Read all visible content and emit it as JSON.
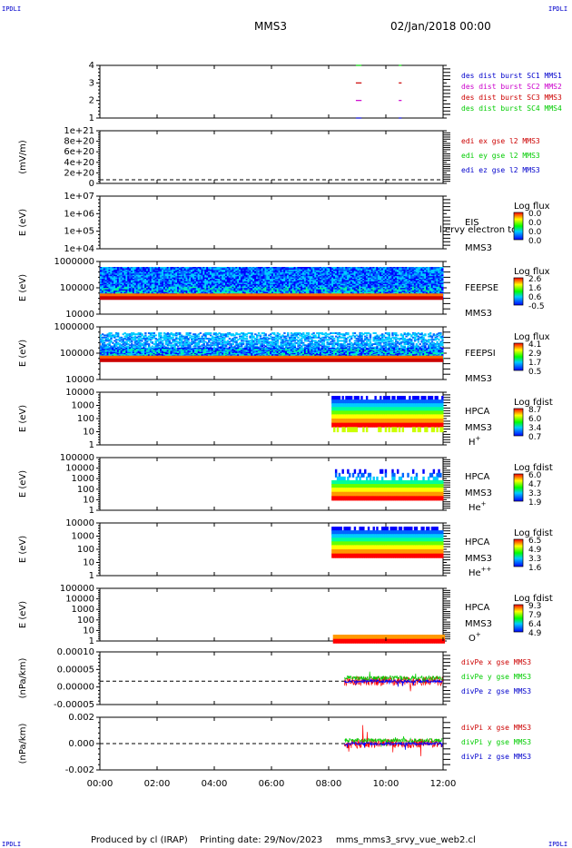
{
  "corner_label": "IPDLI",
  "header": {
    "mission": "MMS3",
    "datetime": "02/Jan/2018 00:00"
  },
  "footer": {
    "produced_by": "Produced by cl (IRAP)",
    "printing_date": "Printing date: 29/Nov/2023",
    "script_name": "mms_mms3_srvy_vue_web2.cl"
  },
  "x_axis": {
    "ticks": [
      "00:00",
      "02:00",
      "04:00",
      "06:00",
      "08:00",
      "10:00",
      "12:00"
    ]
  },
  "colors": {
    "red": "#ff0000",
    "green": "#00cc00",
    "blue": "#0000ff",
    "magenta": "#cc00cc"
  },
  "chart_data": [
    {
      "type": "line",
      "id": "burst",
      "ylabel": "",
      "yticks": [
        "1",
        "2",
        "3",
        "4"
      ],
      "legend": [
        {
          "text": "des dist burst SC1 MMS1",
          "color": "#0000cc"
        },
        {
          "text": "des dist burst SC2 MMS2",
          "color": "#cc00cc"
        },
        {
          "text": "des dist burst SC3 MMS3",
          "color": "#cc0000"
        },
        {
          "text": "des dist burst SC4 MMS4",
          "color": "#00cc00"
        }
      ],
      "series": [
        {
          "name": "des dist burst SC1 MMS1",
          "level": 1,
          "segments": [
            [
              8.95,
              9.15
            ],
            [
              10.45,
              10.55
            ]
          ]
        },
        {
          "name": "des dist burst SC2 MMS2",
          "level": 2,
          "segments": [
            [
              8.95,
              9.15
            ],
            [
              10.45,
              10.55
            ]
          ]
        },
        {
          "name": "des dist burst SC3 MMS3",
          "level": 3,
          "segments": [
            [
              8.95,
              9.15
            ],
            [
              10.45,
              10.55
            ]
          ]
        },
        {
          "name": "des dist burst SC4 MMS4",
          "level": 4,
          "segments": [
            [
              8.95,
              9.15
            ],
            [
              10.45,
              10.55
            ]
          ]
        }
      ]
    },
    {
      "type": "line",
      "id": "edi",
      "ylabel": "(mV/m)",
      "yticks": [
        "0",
        "2e+20",
        "4e+20",
        "6e+20",
        "8e+20",
        "1e+21"
      ],
      "legend": [
        {
          "text": "edi ex gse l2 MMS3",
          "color": "#cc0000"
        },
        {
          "text": "edi ey gse l2 MMS3",
          "color": "#00cc00"
        },
        {
          "text": "edi ez gse l2 MMS3",
          "color": "#0000cc"
        }
      ]
    },
    {
      "type": "heatmap",
      "id": "eis",
      "ylabel": "E (eV)",
      "yticks": [
        "1e+04",
        "1e+05",
        "1e+06",
        "1e+07"
      ],
      "side_labels": [
        "EIS",
        "MMS3"
      ],
      "overflow_label": "l ervy electron to",
      "colorbar": {
        "title": "Log flux",
        "ticks": [
          "0.0",
          "0.0",
          "0.0",
          "0.0"
        ]
      }
    },
    {
      "type": "heatmap",
      "id": "feepse",
      "ylabel": "E (eV)",
      "yticks": [
        "10000",
        "100000",
        "1000000"
      ],
      "side_labels": [
        "FEEPSE",
        "MMS3"
      ],
      "colorbar": {
        "title": "Log flux",
        "ticks": [
          "2.6",
          "1.6",
          "0.6",
          "-0.5"
        ]
      }
    },
    {
      "type": "heatmap",
      "id": "feepsi",
      "ylabel": "E (eV)",
      "yticks": [
        "10000",
        "100000",
        "1000000"
      ],
      "side_labels": [
        "FEEPSI",
        "MMS3"
      ],
      "colorbar": {
        "title": "Log flux",
        "ticks": [
          "4.1",
          "2.9",
          "1.7",
          "0.5"
        ]
      }
    },
    {
      "type": "heatmap",
      "id": "hpca_h",
      "ylabel": "E (eV)",
      "yticks": [
        "1",
        "10",
        "100",
        "1000",
        "10000"
      ],
      "side_labels": [
        "HPCA",
        "MMS3"
      ],
      "species": {
        "base": "H",
        "sup": "+"
      },
      "colorbar": {
        "title": "Log fdist",
        "ticks": [
          "8.7",
          "6.0",
          "3.4",
          "0.7"
        ]
      }
    },
    {
      "type": "heatmap",
      "id": "hpca_he",
      "ylabel": "E (eV)",
      "yticks": [
        "1",
        "10",
        "100",
        "1000",
        "10000",
        "100000"
      ],
      "side_labels": [
        "HPCA",
        "MMS3"
      ],
      "species": {
        "base": "He",
        "sup": "+"
      },
      "colorbar": {
        "title": "Log fdist",
        "ticks": [
          "6.0",
          "4.7",
          "3.3",
          "1.9"
        ]
      }
    },
    {
      "type": "heatmap",
      "id": "hpca_hepp",
      "ylabel": "E (eV)",
      "yticks": [
        "1",
        "10",
        "100",
        "1000",
        "10000"
      ],
      "side_labels": [
        "HPCA",
        "MMS3"
      ],
      "species": {
        "base": "He",
        "sup": "++"
      },
      "colorbar": {
        "title": "Log fdist",
        "ticks": [
          "6.5",
          "4.9",
          "3.3",
          "1.6"
        ]
      }
    },
    {
      "type": "heatmap",
      "id": "hpca_o",
      "ylabel": "E (eV)",
      "yticks": [
        "1",
        "10",
        "100",
        "1000",
        "10000",
        "100000"
      ],
      "side_labels": [
        "HPCA",
        "MMS3"
      ],
      "species": {
        "base": "O",
        "sup": "+"
      },
      "colorbar": {
        "title": "Log fdist",
        "ticks": [
          "9.3",
          "7.9",
          "6.4",
          "4.9"
        ]
      }
    },
    {
      "type": "line",
      "id": "divpe",
      "ylabel": "(nPa/km)",
      "yticks": [
        "-0.00005",
        "0.00000",
        "0.00005",
        "0.00010"
      ],
      "ylim": [
        -8e-05,
        0.0001
      ],
      "legend": [
        {
          "text": "divPe x gse MMS3",
          "color": "#cc0000"
        },
        {
          "text": "divPe y gse MMS3",
          "color": "#00cc00"
        },
        {
          "text": "divPe z gse MMS3",
          "color": "#0000cc"
        }
      ]
    },
    {
      "type": "line",
      "id": "divpi",
      "ylabel": "(nPa/km)",
      "yticks": [
        "-0.002",
        "0.000",
        "0.002"
      ],
      "ylim": [
        -0.0035,
        0.0035
      ],
      "legend": [
        {
          "text": "divPi x gse MMS3",
          "color": "#cc0000"
        },
        {
          "text": "divPi y gse MMS3",
          "color": "#00cc00"
        },
        {
          "text": "divPi z gse MMS3",
          "color": "#0000cc"
        }
      ]
    }
  ]
}
